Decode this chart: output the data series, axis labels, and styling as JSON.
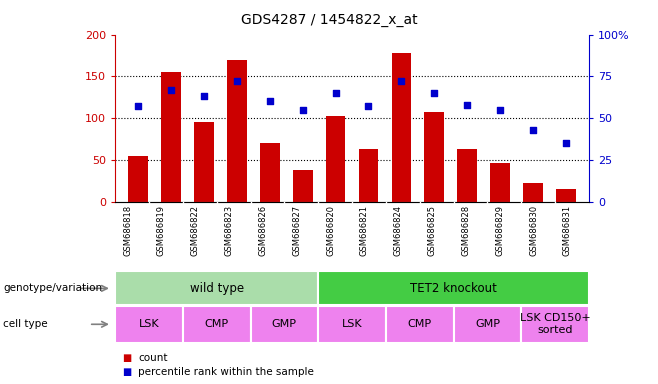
{
  "title": "GDS4287 / 1454822_x_at",
  "samples": [
    "GSM686818",
    "GSM686819",
    "GSM686822",
    "GSM686823",
    "GSM686826",
    "GSM686827",
    "GSM686820",
    "GSM686821",
    "GSM686824",
    "GSM686825",
    "GSM686828",
    "GSM686829",
    "GSM686830",
    "GSM686831"
  ],
  "counts": [
    55,
    155,
    95,
    170,
    70,
    38,
    103,
    63,
    178,
    107,
    63,
    46,
    22,
    15
  ],
  "percentiles": [
    57,
    67,
    63,
    72,
    60,
    55,
    65,
    57,
    72,
    65,
    58,
    55,
    43,
    35
  ],
  "bar_color": "#cc0000",
  "dot_color": "#0000cc",
  "ylim_left": [
    0,
    200
  ],
  "ylim_right": [
    0,
    100
  ],
  "yticks_left": [
    0,
    50,
    100,
    150,
    200
  ],
  "yticks_right": [
    0,
    25,
    50,
    75,
    100
  ],
  "ytick_labels_right": [
    "0",
    "25",
    "50",
    "75",
    "100%"
  ],
  "genotype_groups": [
    {
      "label": "wild type",
      "start": 0,
      "end": 6,
      "color": "#aaddaa"
    },
    {
      "label": "TET2 knockout",
      "start": 6,
      "end": 14,
      "color": "#44cc44"
    }
  ],
  "cell_type_groups": [
    {
      "label": "LSK",
      "start": 0,
      "end": 2
    },
    {
      "label": "CMP",
      "start": 2,
      "end": 4
    },
    {
      "label": "GMP",
      "start": 4,
      "end": 6
    },
    {
      "label": "LSK",
      "start": 6,
      "end": 8
    },
    {
      "label": "CMP",
      "start": 8,
      "end": 10
    },
    {
      "label": "GMP",
      "start": 10,
      "end": 12
    },
    {
      "label": "LSK CD150+\nsorted",
      "start": 12,
      "end": 14
    }
  ],
  "cell_type_color": "#ee82ee",
  "sample_bg_color": "#cccccc",
  "legend_count_label": "count",
  "legend_pct_label": "percentile rank within the sample",
  "bar_color_legend": "#cc0000",
  "dot_color_legend": "#0000cc"
}
